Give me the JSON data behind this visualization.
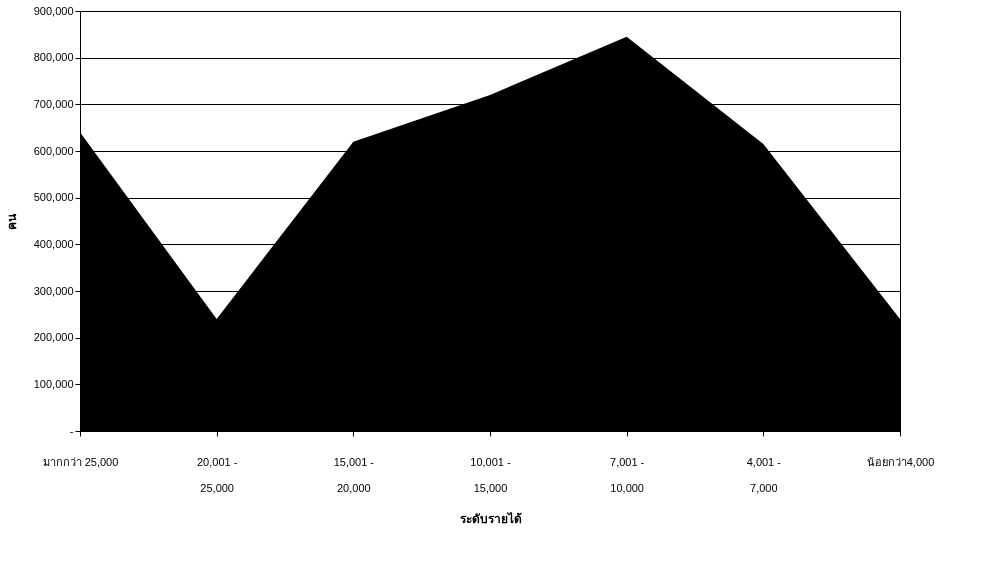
{
  "chart_data": {
    "type": "area",
    "xlabel": "ระดับรายได้",
    "ylabel": "คน",
    "categories": [
      "มากกว่า 25,000",
      "20,001 - 25,000",
      "15,001 - 20,000",
      "10,001 - 15,000",
      "7,001 - 10,000",
      "4,001 - 7,000",
      "น้อยกว่า4,000"
    ],
    "series": [
      {
        "color": "#000000",
        "values": [
          640000,
          240000,
          620000,
          720000,
          845000,
          615000,
          240000
        ]
      }
    ],
    "ylim": [
      0,
      900000
    ],
    "yticks": [
      {
        "value": 0,
        "label": "-"
      },
      {
        "value": 100000,
        "label": "100,000"
      },
      {
        "value": 200000,
        "label": "200,000"
      },
      {
        "value": 300000,
        "label": "300,000"
      },
      {
        "value": 400000,
        "label": "400,000"
      },
      {
        "value": 500000,
        "label": "500,000"
      },
      {
        "value": 600000,
        "label": "600,000"
      },
      {
        "value": 700000,
        "label": "700,000"
      },
      {
        "value": 800000,
        "label": "800,000"
      },
      {
        "value": 900000,
        "label": "900,000"
      }
    ],
    "grid": "y"
  }
}
